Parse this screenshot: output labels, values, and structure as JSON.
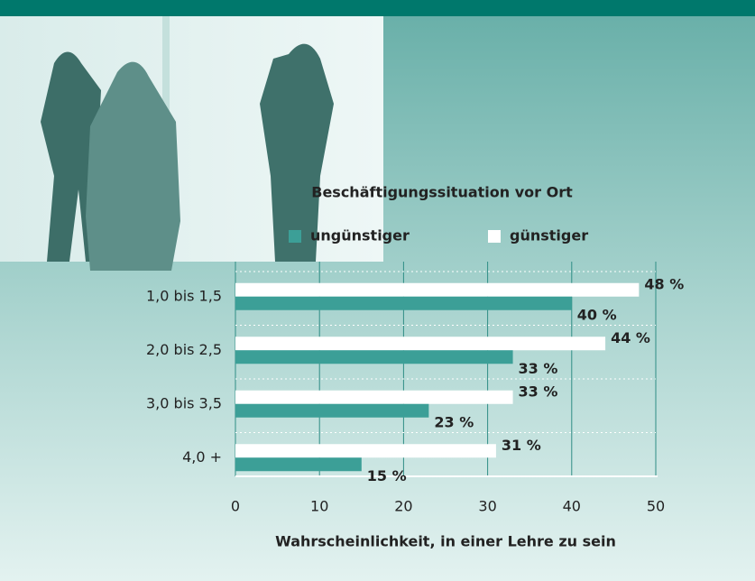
{
  "chart_data": {
    "type": "bar",
    "orientation": "horizontal",
    "title": "Beschäftigungssituation vor Ort",
    "xlabel": "Wahrscheinlichkeit, in einer Lehre zu sein",
    "categories": [
      "1,0 bis 1,5",
      "2,0 bis 2,5",
      "3,0 bis 3,5",
      "4,0 +"
    ],
    "series": [
      {
        "name": "ungünstiger",
        "color": "#3c9f97",
        "values": [
          40,
          33,
          23,
          15
        ],
        "value_labels": [
          "40 %",
          "33 %",
          "23 %",
          "15 %"
        ]
      },
      {
        "name": "günstiger",
        "color": "#ffffff",
        "values": [
          48,
          44,
          33,
          31
        ],
        "value_labels": [
          "48 %",
          "44 %",
          "33 %",
          "31 %"
        ]
      }
    ],
    "xlim": [
      0,
      50
    ],
    "xticks": [
      0,
      10,
      20,
      30,
      40,
      50
    ],
    "grid": true
  }
}
